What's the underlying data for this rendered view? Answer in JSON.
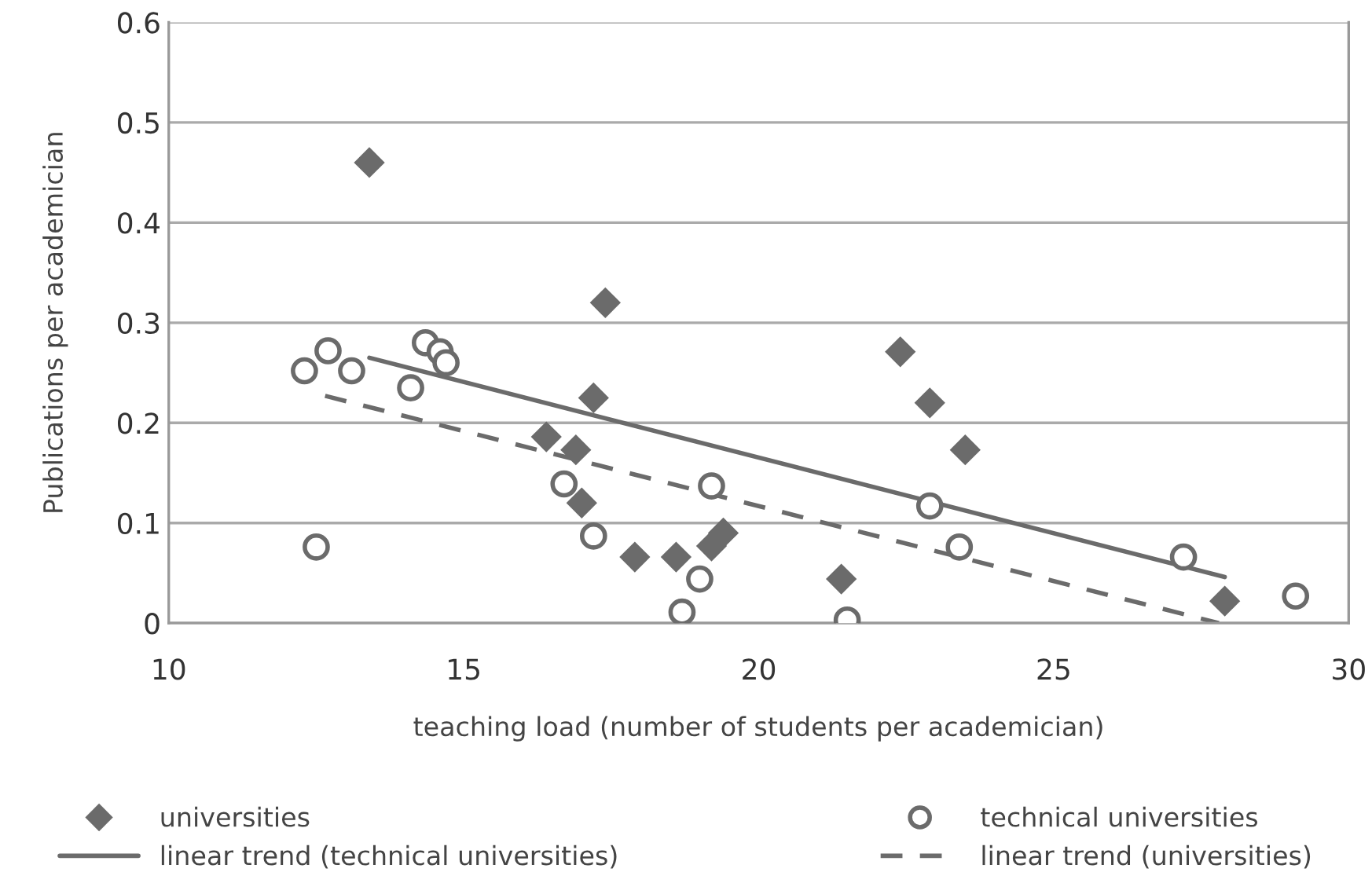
{
  "chart_data": {
    "type": "scatter",
    "xlabel": "teaching load (number of students per academician)",
    "ylabel": "Publications per academician",
    "xlim": [
      10,
      30
    ],
    "xticks": [
      10,
      15,
      20,
      25,
      30
    ],
    "ylim": [
      0,
      0.6
    ],
    "yticks": [
      0,
      0.1,
      0.2,
      0.3,
      0.4,
      0.5,
      0.6
    ],
    "grid": "y",
    "legend": "bottom",
    "series": [
      {
        "name": "universities",
        "marker": "diamond",
        "color": "#6b6b6b",
        "x": [
          13.4,
          17.4,
          17.2,
          16.4,
          16.9,
          17.0,
          17.9,
          18.6,
          19.2,
          19.4,
          21.4,
          22.4,
          22.9,
          23.5,
          27.9
        ],
        "values": [
          0.46,
          0.32,
          0.225,
          0.186,
          0.173,
          0.12,
          0.066,
          0.066,
          0.077,
          0.09,
          0.044,
          0.271,
          0.22,
          0.173,
          0.022
        ]
      },
      {
        "name": "technical universities",
        "marker": "circle",
        "color": "#6b6b6b",
        "x": [
          12.3,
          12.7,
          13.1,
          14.1,
          14.35,
          14.6,
          14.7,
          12.5,
          16.7,
          17.2,
          18.7,
          19.0,
          19.2,
          21.5,
          22.9,
          23.4,
          27.2,
          29.1
        ],
        "values": [
          0.252,
          0.272,
          0.252,
          0.235,
          0.28,
          0.271,
          0.26,
          0.076,
          0.139,
          0.087,
          0.011,
          0.044,
          0.137,
          0.003,
          0.117,
          0.076,
          0.066,
          0.027
        ]
      },
      {
        "name": "linear trend (technical universities)",
        "type": "line",
        "line_style": "solid",
        "color": "#6b6b6b",
        "x": [
          13.4,
          27.9
        ],
        "values": [
          0.265,
          0.046
        ]
      },
      {
        "name": "linear trend (universities)",
        "type": "line",
        "line_style": "dashed",
        "color": "#6b6b6b",
        "x": [
          12.65,
          27.8
        ],
        "values": [
          0.227,
          0.0
        ]
      }
    ]
  }
}
